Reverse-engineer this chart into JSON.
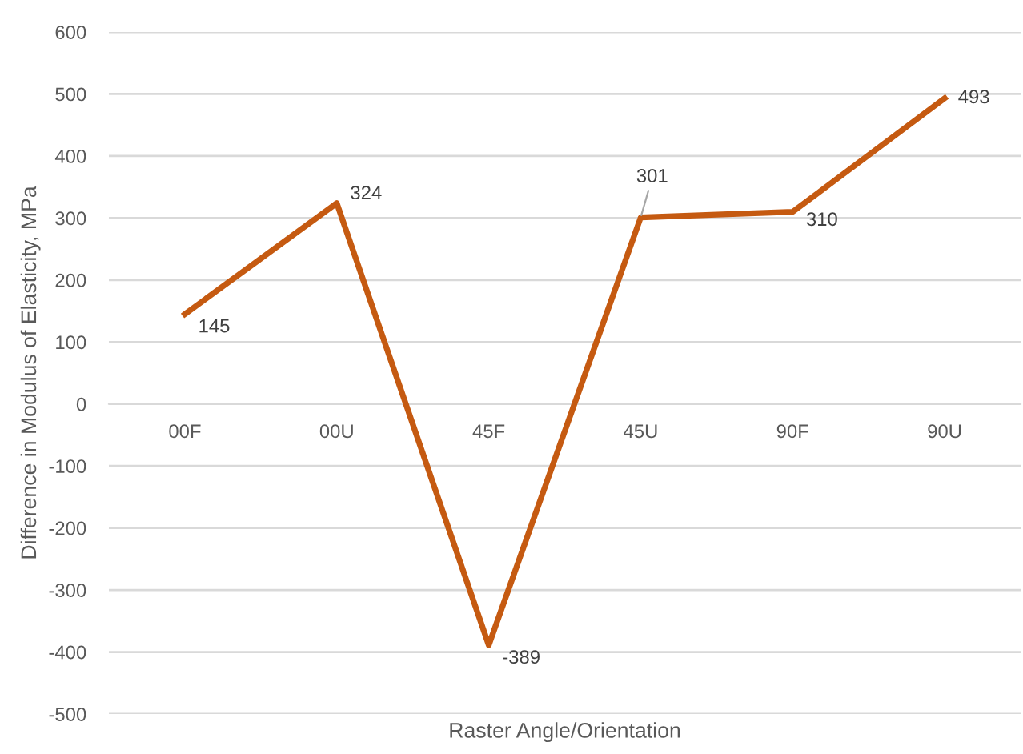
{
  "chart_data": {
    "type": "line",
    "xlabel": "Raster Angle/Orientation",
    "ylabel": "Difference in Modulus of Elasticity, MPa",
    "categories": [
      "00F",
      "00U",
      "45F",
      "45U",
      "90F",
      "90U"
    ],
    "series": [
      {
        "color": "#c55a11",
        "values": [
          145,
          324,
          -389,
          301,
          310,
          493
        ]
      }
    ],
    "ylim": [
      -500,
      600
    ],
    "yticks": [
      -500,
      -400,
      -300,
      -200,
      -100,
      0,
      100,
      200,
      300,
      400,
      500,
      600
    ],
    "grid": "y",
    "data_labels": true,
    "marker": "none",
    "line_style": "solid"
  }
}
